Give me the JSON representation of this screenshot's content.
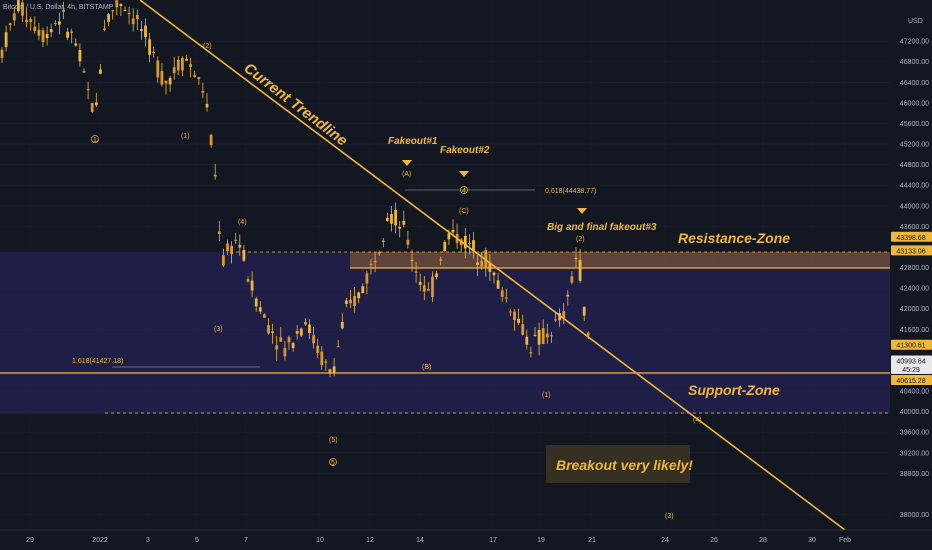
{
  "header": {
    "symbol_label": "Bitcoin / U.S. Dollar, 4h, BITSTAMP",
    "currency": "USD"
  },
  "colors": {
    "background": "#131722",
    "candle": "#f0b73b",
    "zone": "#2a2466",
    "axis_text": "#b2b5be",
    "tag": "#f0b73b",
    "tag_text": "#131722"
  },
  "chart_data": {
    "type": "candlestick",
    "ylim": [
      37700,
      48000
    ],
    "y_ticks": [
      "47200.00",
      "46800.00",
      "46400.00",
      "46000.00",
      "45600.00",
      "45200.00",
      "44800.00",
      "44400.00",
      "44000.00",
      "43600.00",
      "42800.00",
      "42400.00",
      "42000.00",
      "41600.00",
      "40400.00",
      "40000.00",
      "39600.00",
      "39200.00",
      "38800.00",
      "38000.00"
    ],
    "x_ticks": [
      "29",
      "2022",
      "3",
      "5",
      "7",
      "10",
      "12",
      "14",
      "17",
      "19",
      "21",
      "24",
      "26",
      "28",
      "30",
      "Feb"
    ],
    "price_tags": [
      {
        "label": "43398.68",
        "value": 43398.68
      },
      {
        "label": "43133.06",
        "value": 43133.06
      },
      {
        "label": "41300.61",
        "value": 41300.61
      },
      {
        "label": "40993.64",
        "value": 40993.64
      },
      {
        "label": "45:29",
        "value": 40830
      },
      {
        "label": "40615.28",
        "value": 40615.28
      }
    ],
    "lines": {
      "resistance_top": 43398.68,
      "resistance_bottom": 43133.06,
      "support": 41300.61,
      "support_bottom": 40615.28
    },
    "fib_labels": [
      {
        "text": "0.618(44438.77)",
        "value": 44438.77
      },
      {
        "text": "1.618(41427.18)",
        "value": 41427.18
      }
    ],
    "annotations": {
      "trendline": "Current Trendline",
      "fakeout1": "Fakeout#1",
      "fakeout2": "Fakeout#2",
      "fakeout3": "Big and final fakeout#3",
      "resistance_zone": "Resistance-Zone",
      "support_zone": "Support-Zone",
      "breakout": "Breakout very likely!"
    },
    "wave_labels": [
      "1",
      "(1)",
      "(2)",
      "(3)",
      "(4)",
      "(5)",
      "5",
      "(A)",
      "4",
      "(C)",
      "(B)",
      "(1)",
      "(2)",
      "(4)",
      "(3)"
    ]
  }
}
